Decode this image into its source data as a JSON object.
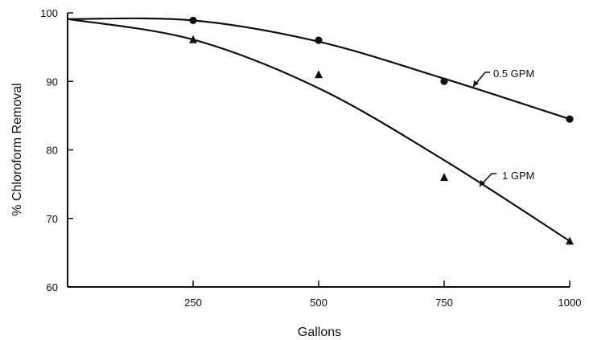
{
  "chart_data": {
    "type": "scatter",
    "title": "",
    "xlabel": "Gallons",
    "ylabel": "% Chloroform Removal",
    "xlim": [
      0,
      1000
    ],
    "ylim": [
      60,
      100
    ],
    "x_ticks": [
      250,
      500,
      750,
      1000
    ],
    "y_ticks": [
      60,
      70,
      80,
      90,
      100
    ],
    "grid": false,
    "series": [
      {
        "name": "0.5 GPM",
        "marker": "circle",
        "points": [
          {
            "x": 250,
            "y": 98.9
          },
          {
            "x": 500,
            "y": 96.0
          },
          {
            "x": 750,
            "y": 90.0
          },
          {
            "x": 1000,
            "y": 84.5
          }
        ],
        "fit": [
          {
            "x": 0,
            "y": 99.1
          },
          {
            "x": 250,
            "y": 98.9
          },
          {
            "x": 500,
            "y": 95.8
          },
          {
            "x": 750,
            "y": 90.4
          },
          {
            "x": 1000,
            "y": 84.5
          }
        ]
      },
      {
        "name": "1 GPM",
        "marker": "triangle",
        "points": [
          {
            "x": 250,
            "y": 96.1
          },
          {
            "x": 500,
            "y": 91.0
          },
          {
            "x": 750,
            "y": 76.0
          },
          {
            "x": 1000,
            "y": 66.7
          }
        ],
        "fit": [
          {
            "x": 0,
            "y": 99.1
          },
          {
            "x": 250,
            "y": 96.1
          },
          {
            "x": 500,
            "y": 89.0
          },
          {
            "x": 750,
            "y": 78.5
          },
          {
            "x": 1000,
            "y": 66.7
          }
        ]
      }
    ]
  }
}
